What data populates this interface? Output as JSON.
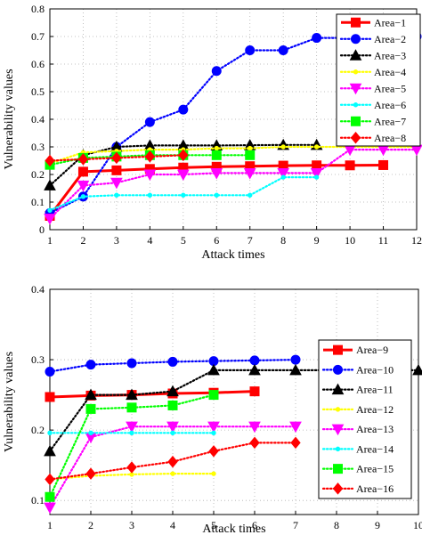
{
  "chart_data": [
    {
      "type": "line",
      "title": "",
      "xlabel": "Attack times",
      "ylabel": "Vulnerability values",
      "x": [
        1,
        2,
        3,
        4,
        5,
        6,
        7,
        8,
        9,
        10,
        11,
        12
      ],
      "xlim": [
        1,
        12
      ],
      "ylim": [
        0,
        0.8
      ],
      "xticks": [
        "1",
        "2",
        "3",
        "4",
        "5",
        "6",
        "7",
        "8",
        "9",
        "10",
        "11",
        "12"
      ],
      "yticks": [
        "0",
        "0.1",
        "0.2",
        "0.3",
        "0.4",
        "0.5",
        "0.6",
        "0.7",
        "0.8"
      ],
      "grid": true,
      "legend_position": "top-right",
      "series": [
        {
          "name": "Area−1",
          "color": "#ff0000",
          "marker": "square",
          "line": "solid",
          "x": [
            1,
            2,
            3,
            4,
            5,
            6,
            7,
            8,
            9,
            10,
            11
          ],
          "values": [
            0.05,
            0.21,
            0.215,
            0.22,
            0.225,
            0.228,
            0.23,
            0.232,
            0.233,
            0.233,
            0.234
          ]
        },
        {
          "name": "Area−2",
          "color": "#0000ff",
          "marker": "circle",
          "line": "dotted",
          "x": [
            1,
            2,
            3,
            4,
            5,
            6,
            7,
            8,
            9,
            10,
            11,
            12
          ],
          "values": [
            0.06,
            0.12,
            0.3,
            0.39,
            0.435,
            0.575,
            0.65,
            0.65,
            0.695,
            0.695,
            0.695,
            0.7
          ]
        },
        {
          "name": "Area−3",
          "color": "#000000",
          "marker": "triangle-up",
          "line": "dotted",
          "x": [
            1,
            2,
            3,
            4,
            5,
            6,
            7,
            8,
            9
          ],
          "values": [
            0.16,
            0.27,
            0.3,
            0.305,
            0.305,
            0.305,
            0.306,
            0.307,
            0.307
          ]
        },
        {
          "name": "Area−4",
          "color": "#ffff00",
          "marker": "dot",
          "line": "dotted",
          "x": [
            1,
            2,
            3,
            4,
            5,
            6,
            7,
            8,
            9,
            10,
            11,
            12
          ],
          "values": [
            0.24,
            0.28,
            0.285,
            0.29,
            0.29,
            0.295,
            0.295,
            0.3,
            0.3,
            0.3,
            0.3,
            0.3
          ]
        },
        {
          "name": "Area−5",
          "color": "#ff00ff",
          "marker": "triangle-down",
          "line": "dotted",
          "x": [
            1,
            2,
            3,
            4,
            5,
            6,
            7,
            8,
            9,
            10,
            11,
            12
          ],
          "values": [
            0.04,
            0.16,
            0.17,
            0.2,
            0.2,
            0.205,
            0.205,
            0.205,
            0.205,
            0.29,
            0.29,
            0.29
          ]
        },
        {
          "name": "Area−6",
          "color": "#00ffff",
          "marker": "dot",
          "line": "dotted",
          "x": [
            1,
            2,
            3,
            4,
            5,
            6,
            7,
            8,
            9
          ],
          "values": [
            0.07,
            0.12,
            0.125,
            0.125,
            0.125,
            0.125,
            0.125,
            0.19,
            0.19
          ]
        },
        {
          "name": "Area−7",
          "color": "#00ff00",
          "marker": "square",
          "line": "dotted",
          "x": [
            1,
            2,
            3,
            4,
            5,
            6,
            7
          ],
          "values": [
            0.235,
            0.26,
            0.265,
            0.27,
            0.27,
            0.27,
            0.27
          ]
        },
        {
          "name": "Area−8",
          "color": "#ff0000",
          "marker": "diamond",
          "line": "dotted",
          "x": [
            1,
            2,
            3,
            4,
            5
          ],
          "values": [
            0.25,
            0.255,
            0.26,
            0.265,
            0.27
          ]
        }
      ]
    },
    {
      "type": "line",
      "title": "",
      "xlabel": "Attack times",
      "ylabel": "Vulnerability values",
      "x": [
        1,
        2,
        3,
        4,
        5,
        6,
        7,
        8,
        9,
        10
      ],
      "xlim": [
        1,
        10
      ],
      "ylim": [
        0.08,
        0.4
      ],
      "xticks": [
        "1",
        "2",
        "3",
        "4",
        "5",
        "6",
        "7",
        "8",
        "9",
        "10"
      ],
      "yticks": [
        "0.1",
        "0.2",
        "0.3",
        "0.4"
      ],
      "grid": true,
      "legend_position": "right",
      "series": [
        {
          "name": "Area−9",
          "color": "#ff0000",
          "marker": "square",
          "line": "solid",
          "x": [
            1,
            2,
            3,
            4,
            5,
            6
          ],
          "values": [
            0.247,
            0.249,
            0.25,
            0.252,
            0.253,
            0.255
          ]
        },
        {
          "name": "Area−10",
          "color": "#0000ff",
          "marker": "circle",
          "line": "dotted",
          "x": [
            1,
            2,
            3,
            4,
            5,
            6,
            7
          ],
          "values": [
            0.283,
            0.293,
            0.295,
            0.297,
            0.298,
            0.299,
            0.3
          ]
        },
        {
          "name": "Area−11",
          "color": "#000000",
          "marker": "triangle-up",
          "line": "dotted",
          "x": [
            1,
            2,
            3,
            4,
            5,
            6,
            7,
            10
          ],
          "values": [
            0.17,
            0.25,
            0.25,
            0.255,
            0.285,
            0.285,
            0.285,
            0.285
          ]
        },
        {
          "name": "Area−12",
          "color": "#ffff00",
          "marker": "dot",
          "line": "dotted",
          "x": [
            1,
            2,
            3,
            4,
            5
          ],
          "values": [
            0.13,
            0.135,
            0.137,
            0.138,
            0.138
          ]
        },
        {
          "name": "Area−13",
          "color": "#ff00ff",
          "marker": "triangle-down",
          "line": "dotted",
          "x": [
            1,
            2,
            3,
            4,
            5,
            6,
            7
          ],
          "values": [
            0.09,
            0.19,
            0.205,
            0.205,
            0.205,
            0.205,
            0.205
          ]
        },
        {
          "name": "Area−14",
          "color": "#00ffff",
          "marker": "dot",
          "line": "dotted",
          "x": [
            1,
            2,
            3,
            4,
            5
          ],
          "values": [
            0.196,
            0.196,
            0.196,
            0.196,
            0.196
          ]
        },
        {
          "name": "Area−15",
          "color": "#00ff00",
          "marker": "square",
          "line": "dotted",
          "x": [
            1,
            2,
            3,
            4,
            5
          ],
          "values": [
            0.105,
            0.23,
            0.232,
            0.235,
            0.25
          ]
        },
        {
          "name": "Area−16",
          "color": "#ff0000",
          "marker": "diamond",
          "line": "dotted",
          "x": [
            1,
            2,
            3,
            4,
            5,
            6,
            7
          ],
          "values": [
            0.13,
            0.138,
            0.147,
            0.155,
            0.17,
            0.182,
            0.182
          ]
        }
      ]
    }
  ]
}
